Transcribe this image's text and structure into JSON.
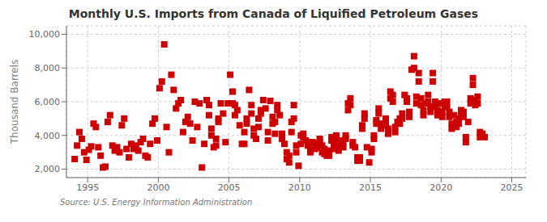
{
  "chart_data": {
    "type": "scatter",
    "title": "Monthly U.S. Imports from Canada of Liquified Petroleum Gases",
    "ylabel": "Thousand Barrels",
    "annotations": [
      "Source: U.S. Energy Information Administration"
    ],
    "xlim": [
      1993.5,
      2026.0
    ],
    "ylim": [
      1500,
      10500
    ],
    "xticks": [
      1995,
      2000,
      2005,
      2010,
      2015,
      2020,
      2025
    ],
    "yticks": [
      {
        "value": 2000,
        "label": "2,000"
      },
      {
        "value": 4000,
        "label": "4,000"
      },
      {
        "value": 6000,
        "label": "6,000"
      },
      {
        "value": 8000,
        "label": "8,000"
      },
      {
        "value": 10000,
        "label": "10,000"
      }
    ],
    "grid": true,
    "color": "#CC0000",
    "marker": "square",
    "x": [
      1994.917,
      1995.083,
      1995.25,
      1995.417,
      1995.583,
      1995.75,
      1995.917,
      1996.083,
      1996.25,
      1996.417,
      1996.583,
      1996.75,
      1996.917,
      1997.083,
      1997.25,
      1997.417,
      1997.583,
      1997.75,
      1997.917,
      1998.083,
      1998.25,
      1998.417,
      1998.583,
      1998.75,
      1998.917,
      1999.083,
      1999.25,
      1999.417,
      1999.583,
      1999.75,
      1999.917,
      2000.083,
      2000.25,
      2000.417,
      2000.583,
      2000.75,
      2000.917,
      2001.083,
      2001.25,
      2001.417,
      2001.583,
      2001.75,
      2001.917,
      2002.083,
      2002.25,
      2002.417,
      2002.583,
      2002.75,
      2002.917,
      2003.083,
      2003.25,
      2003.417,
      2003.583,
      2003.75,
      2003.917,
      2004.083,
      2004.25,
      2004.417,
      2004.583,
      2004.75,
      2004.917,
      2005.083,
      2005.25,
      2005.417,
      2005.583,
      2005.75,
      2005.917,
      2006.083,
      2006.25,
      2006.417,
      2006.583,
      2006.75,
      2006.917,
      2007.083,
      2007.25,
      2007.417,
      2007.583,
      2007.75,
      2007.917,
      2008.083,
      2008.25,
      2008.417,
      2008.583,
      2008.75,
      2008.917,
      2009.083,
      2009.25,
      2009.417,
      2009.583,
      2009.75,
      2009.917,
      2010.083,
      2010.25,
      2010.417,
      2010.583,
      2010.75,
      2010.917,
      2011.083,
      2011.25,
      2011.417,
      2011.583,
      2011.75,
      2011.917,
      2012.083,
      2012.25,
      2012.417,
      2012.583,
      2012.75,
      2012.917,
      2013.083,
      2013.25,
      2013.417,
      2013.583,
      2013.75,
      2013.917,
      2014.083,
      2014.25,
      2014.417,
      2014.583,
      2014.75,
      2014.917,
      2015.083,
      2015.25,
      2015.417,
      2015.583,
      2015.75,
      2015.917,
      2016.083,
      2016.25,
      2016.417,
      2016.583,
      2016.75,
      2016.917,
      2017.083,
      2017.25,
      2017.417,
      2017.583,
      2017.75,
      2017.917,
      2018.083,
      2018.25,
      2018.417,
      2018.583,
      2018.75,
      2018.917,
      2019.083,
      2019.25,
      2019.417,
      2019.583,
      2019.75,
      2019.917,
      2020.083,
      2020.25,
      2020.417,
      2020.583,
      2020.75,
      2020.917,
      2021.083,
      2021.25,
      2021.417,
      2021.583,
      2021.75,
      2021.917,
      2022.083,
      2022.25,
      2022.417,
      2022.583,
      2022.75,
      2022.917,
      2023.083,
      1994.083,
      1994.25,
      1994.417,
      1994.583,
      1994.75,
      2003.583,
      2003.75,
      2004.083,
      2004.25,
      2005.25,
      2005.417,
      2006.083,
      2006.25,
      2006.583,
      2006.75,
      2007.083,
      2007.25,
      2007.75,
      2008.083,
      2008.25,
      2008.417,
      2008.75,
      2009.083,
      2009.25,
      2009.417,
      2009.583,
      2009.75,
      2010.083,
      2010.25,
      2010.583,
      2010.75,
      2011.083,
      2011.25,
      2011.417,
      2011.583,
      2011.75,
      2012.083,
      2012.25,
      2012.417,
      2012.583,
      2012.75,
      2013.083,
      2013.25,
      2013.417,
      2013.583,
      2013.75,
      2014.083,
      2014.25,
      2014.417,
      2014.583,
      2015.083,
      2015.25,
      2015.417,
      2015.583,
      2015.75,
      2016.083,
      2016.25,
      2016.417,
      2016.583,
      2016.75,
      2017.083,
      2017.25,
      2017.583,
      2017.75,
      2018.083,
      2018.25,
      2018.417,
      2018.583,
      2018.75,
      2019.083,
      2019.25,
      2019.417,
      2019.583,
      2019.75,
      2020.083,
      2020.25,
      2020.417,
      2020.583,
      2020.75,
      2021.083,
      2021.25,
      2021.417,
      2021.583,
      2021.75,
      2022.083,
      2022.25,
      2022.417,
      2022.583,
      2022.75
    ],
    "values": [
      2550,
      3150,
      3350,
      4700,
      4500,
      3300,
      2800,
      2100,
      2150,
      4800,
      5200,
      3400,
      3100,
      3300,
      3000,
      4600,
      5000,
      3200,
      2700,
      3500,
      3200,
      3400,
      3100,
      3600,
      3800,
      2800,
      2700,
      3500,
      4700,
      5000,
      3700,
      6800,
      7200,
      9400,
      4500,
      3000,
      7600,
      6700,
      5600,
      5900,
      6100,
      4200,
      4800,
      5100,
      4700,
      3700,
      6000,
      4500,
      5900,
      2100,
      3500,
      6100,
      5800,
      4400,
      3300,
      3400,
      4800,
      5900,
      5300,
      3600,
      5900,
      7600,
      6600,
      5800,
      5500,
      4600,
      3500,
      3500,
      4700,
      6700,
      5800,
      4400,
      3800,
      4500,
      5300,
      6100,
      5600,
      3700,
      6050,
      4700,
      4100,
      5800,
      5200,
      4100,
      3500,
      3000,
      2400,
      4800,
      5800,
      3400,
      2200,
      4000,
      4100,
      3700,
      3600,
      3000,
      3600,
      3500,
      3500,
      3800,
      3400,
      3200,
      2800,
      2800,
      3900,
      3500,
      4000,
      3400,
      3700,
      3600,
      4000,
      5900,
      6200,
      3600,
      3300,
      2700,
      2700,
      4600,
      5300,
      3300,
      2400,
      3200,
      4000,
      4900,
      5600,
      4700,
      4600,
      5000,
      4400,
      6600,
      6400,
      4500,
      4800,
      5000,
      5300,
      6400,
      6200,
      5400,
      7900,
      8700,
      6300,
      7700,
      6200,
      5500,
      5900,
      6400,
      5700,
      7700,
      6000,
      5500,
      5900,
      5400,
      6000,
      6000,
      5400,
      4700,
      5200,
      4800,
      5000,
      5500,
      5400,
      3900,
      4800,
      6200,
      7400,
      6100,
      6300,
      4200,
      4100,
      3900,
      2600,
      3400,
      4200,
      3800,
      3000,
      5200,
      4000,
      3800,
      5000,
      5900,
      5200,
      4200,
      5000,
      5300,
      4000,
      5000,
      5500,
      4200,
      5100,
      4800,
      5500,
      3800,
      2600,
      2800,
      4200,
      5000,
      3000,
      3500,
      3900,
      3400,
      3200,
      3200,
      3300,
      3600,
      3000,
      2900,
      3100,
      3700,
      3200,
      3800,
      3100,
      3300,
      3800,
      5500,
      5800,
      3400,
      2500,
      2500,
      4400,
      5000,
      3000,
      3800,
      4700,
      5300,
      4400,
      4700,
      4100,
      6200,
      6000,
      4200,
      4700,
      5000,
      6000,
      5100,
      8000,
      5900,
      7200,
      5800,
      5200,
      6000,
      5400,
      7200,
      5700,
      5200,
      5100,
      5700,
      5700,
      5100,
      4400,
      4500,
      4700,
      5200,
      5100,
      3600,
      5900,
      7000,
      5800,
      5900,
      3900
    ]
  }
}
